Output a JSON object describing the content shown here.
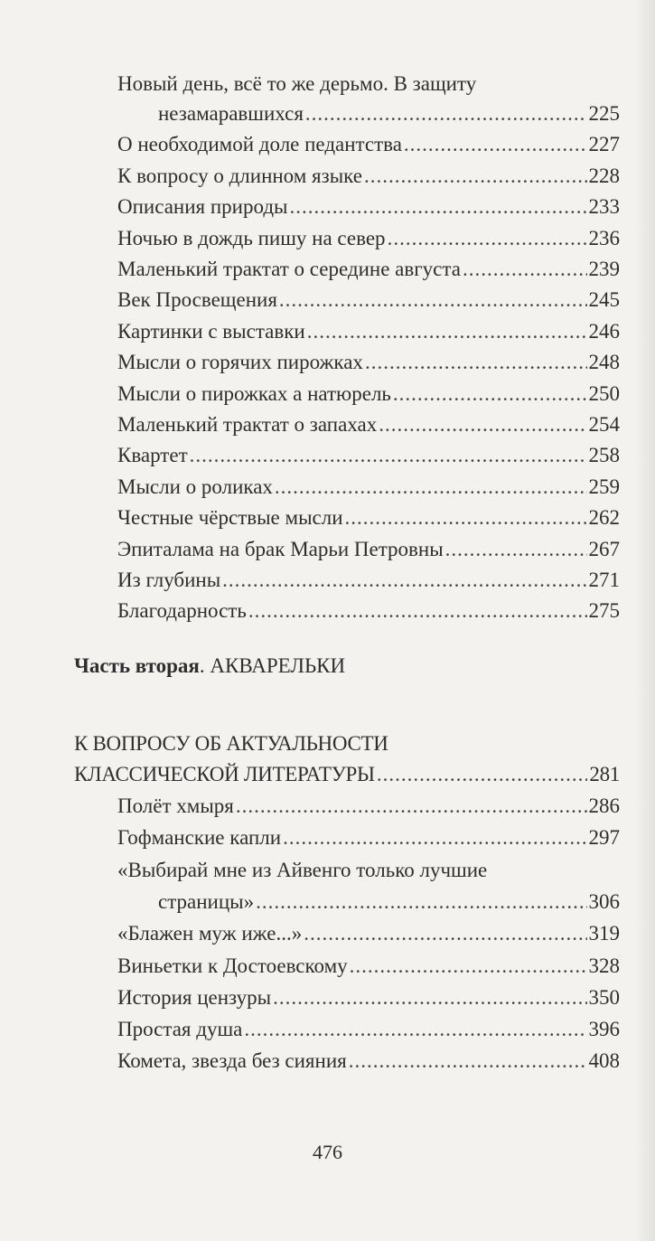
{
  "part_one_entries": [
    {
      "title_line1": "Новый день, всё то же дерьмо. В защиту",
      "title": "незамаравшихся",
      "page": "225"
    },
    {
      "title": "О необходимой доле педантства",
      "page": "227"
    },
    {
      "title": "К вопросу о длинном языке",
      "page": "228"
    },
    {
      "title": "Описания природы",
      "page": "233"
    },
    {
      "title": "Ночью в дождь пишу на север",
      "page": "236"
    },
    {
      "title": "Маленький трактат о середине августа",
      "page": "239"
    },
    {
      "title": "Век Просвещения",
      "page": "245"
    },
    {
      "title": "Картинки с выставки",
      "page": "246"
    },
    {
      "title": "Мысли о горячих пирожках",
      "page": "248"
    },
    {
      "title": "Мысли о пирожках а натюрель",
      "page": "250"
    },
    {
      "title": "Маленький трактат о запахах",
      "page": "254"
    },
    {
      "title": "Квартет",
      "page": "258"
    },
    {
      "title": "Мысли о роликах",
      "page": "259"
    },
    {
      "title": "Честные чёрствые мысли",
      "page": "262"
    },
    {
      "title": "Эпиталама на брак Марьи Петровны",
      "page": "267"
    },
    {
      "title": "Из глубины",
      "page": "271"
    },
    {
      "title": "Благодарность",
      "page": "275"
    }
  ],
  "part_two": {
    "label_bold": "Часть вторая",
    "label_rest": ". АКВАРЕЛЬКИ",
    "section": {
      "title_line1": "К ВОПРОСУ ОБ АКТУАЛЬНОСТИ",
      "title": "КЛАССИЧЕСКОЙ ЛИТЕРАТУРЫ",
      "page": "281"
    },
    "entries": [
      {
        "title": "Полёт хмыря",
        "page": "286"
      },
      {
        "title": "Гофманские капли",
        "page": "297"
      },
      {
        "title_line1": "«Выбирай мне из Айвенго только лучшие",
        "title": "страницы»",
        "page": "306"
      },
      {
        "title": "«Блажен муж иже...»",
        "page": "319"
      },
      {
        "title": "Виньетки к Достоевскому",
        "page": "328"
      },
      {
        "title": "История цензуры",
        "page": "350"
      },
      {
        "title": "Простая душа",
        "page": "396"
      },
      {
        "title": "Комета, звезда без сияния",
        "page": "408"
      }
    ]
  },
  "page_number": "476"
}
